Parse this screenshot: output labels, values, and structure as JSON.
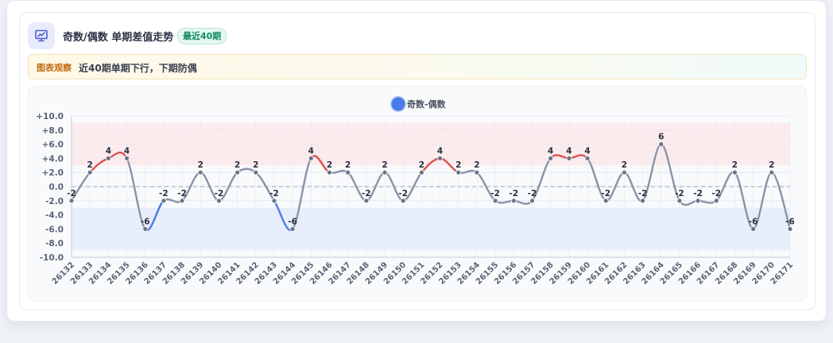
{
  "header": {
    "title": "奇数/偶数 单期差值走势",
    "badge": "最近40期",
    "icon": "chart-icon"
  },
  "observation": {
    "tag": "图表观察",
    "text": "近40期单期下行，下期防偶"
  },
  "colors": {
    "accent": "#4a7be8",
    "up": "#d9534f",
    "down": "#4a7be8",
    "neutral": "#8a93a6",
    "upper_band": "#fde7ea",
    "lower_band": "#e4ecfd"
  },
  "chart_data": {
    "type": "line",
    "legend": "奇数-偶数",
    "legend_position": "top-center",
    "categories": [
      "26132",
      "26133",
      "26134",
      "26135",
      "26136",
      "26137",
      "26138",
      "26139",
      "26140",
      "26141",
      "26142",
      "26143",
      "26144",
      "26145",
      "26146",
      "26147",
      "26148",
      "26149",
      "26150",
      "26151",
      "26152",
      "26153",
      "26154",
      "26155",
      "26156",
      "26157",
      "26158",
      "26159",
      "26160",
      "26161",
      "26162",
      "26163",
      "26164",
      "26165",
      "26166",
      "26167",
      "26168",
      "26169",
      "26170",
      "26171"
    ],
    "values": [
      -2,
      2,
      4,
      4,
      -6,
      -2,
      -2,
      2,
      -2,
      2,
      2,
      -2,
      -6,
      4,
      2,
      2,
      -2,
      2,
      -2,
      2,
      4,
      2,
      2,
      -2,
      -2,
      -2,
      4,
      4,
      4,
      -2,
      2,
      -2,
      6,
      -2,
      -2,
      -2,
      2,
      -6,
      2,
      -6
    ],
    "ylim": [
      -10,
      10
    ],
    "yticks": [
      "+10.0",
      "+8.0",
      "+6.0",
      "+4.0",
      "+2.0",
      "0.0",
      "-2.0",
      "-4.0",
      "-6.0",
      "-8.0",
      "-10.0"
    ],
    "ytick_values": [
      10,
      8,
      6,
      4,
      2,
      0,
      -2,
      -4,
      -6,
      -8,
      -10
    ],
    "upper_band": [
      3,
      9
    ],
    "lower_band": [
      -9,
      -3
    ],
    "grid": true
  }
}
